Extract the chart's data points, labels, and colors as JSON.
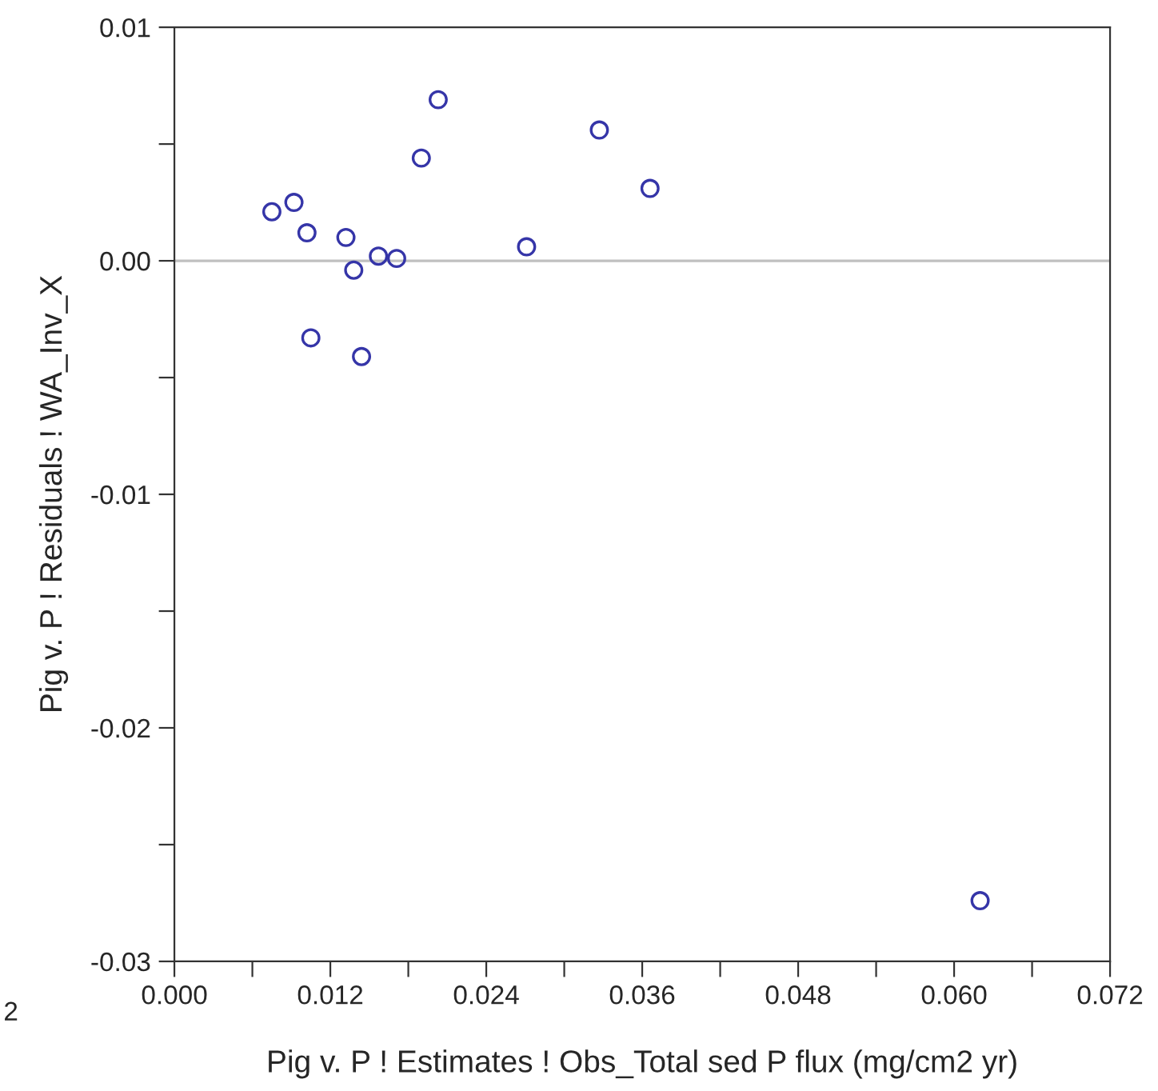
{
  "chart_data": {
    "type": "scatter",
    "xlabel": "Pig v. P ! Estimates ! Obs_Total sed P flux (mg/cm2 yr)",
    "ylabel": "Pig v. P ! Residuals ! WA_Inv_X",
    "x": [
      0.0075,
      0.0092,
      0.0102,
      0.0105,
      0.0132,
      0.0138,
      0.0144,
      0.0157,
      0.0171,
      0.019,
      0.0203,
      0.0271,
      0.0327,
      0.0366,
      0.062
    ],
    "series": [
      {
        "color": "#3535a8",
        "values": [
          0.0021,
          0.0025,
          0.0012,
          -0.0033,
          0.001,
          -0.0004,
          -0.0041,
          0.0002,
          0.0001,
          0.0044,
          0.0069,
          0.0006,
          0.0056,
          0.0031,
          -0.0274
        ]
      }
    ],
    "marker": "circle",
    "xlim": [
      0,
      0.072
    ],
    "ylim": [
      -0.03,
      0.01
    ],
    "xticks": [
      {
        "value": 0,
        "label": "0.000"
      },
      {
        "value": 0.006,
        "label": null
      },
      {
        "value": 0.012,
        "label": "0.012"
      },
      {
        "value": 0.018,
        "label": null
      },
      {
        "value": 0.024,
        "label": "0.024"
      },
      {
        "value": 0.03,
        "label": null
      },
      {
        "value": 0.036,
        "label": "0.036"
      },
      {
        "value": 0.042,
        "label": null
      },
      {
        "value": 0.048,
        "label": "0.048"
      },
      {
        "value": 0.054,
        "label": null
      },
      {
        "value": 0.06,
        "label": "0.060"
      },
      {
        "value": 0.066,
        "label": null
      },
      {
        "value": 0.072,
        "label": "0.072"
      }
    ],
    "yticks": [
      {
        "value": -0.03,
        "label": "-0.03"
      },
      {
        "value": -0.025,
        "label": null
      },
      {
        "value": -0.02,
        "label": "-0.02"
      },
      {
        "value": -0.015,
        "label": null
      },
      {
        "value": -0.01,
        "label": "-0.01"
      },
      {
        "value": -0.005,
        "label": null
      },
      {
        "value": 0,
        "label": "0.00"
      },
      {
        "value": 0.005,
        "label": null
      },
      {
        "value": 0.01,
        "label": "0.01"
      }
    ],
    "ref_lines": [
      {
        "axis": "y",
        "value": 0,
        "color": "#c0c0c0"
      }
    ],
    "annotations": [
      "2"
    ],
    "grid": false,
    "legend": false
  }
}
